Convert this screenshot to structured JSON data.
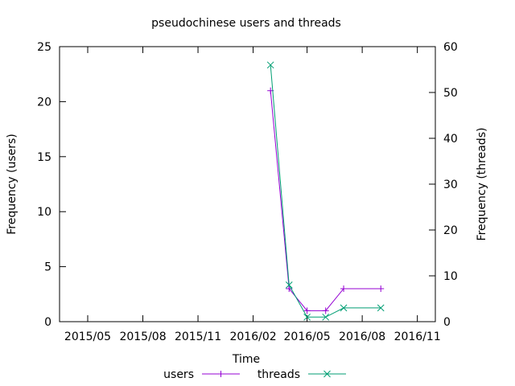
{
  "chart_data": {
    "type": "line",
    "title": "pseudochinese users and threads",
    "xlabel": "Time",
    "ylabel": "Frequency (users)",
    "y2label": "Frequency (threads)",
    "xlim": [
      "2015-03-15",
      "2016-12-01"
    ],
    "xticks": [
      {
        "date": "2015-05-01",
        "label": "2015/05"
      },
      {
        "date": "2015-08-01",
        "label": "2015/08"
      },
      {
        "date": "2015-11-01",
        "label": "2015/11"
      },
      {
        "date": "2016-02-01",
        "label": "2016/02"
      },
      {
        "date": "2016-05-01",
        "label": "2016/05"
      },
      {
        "date": "2016-08-01",
        "label": "2016/08"
      },
      {
        "date": "2016-11-01",
        "label": "2016/11"
      }
    ],
    "ylim": [
      0,
      25
    ],
    "yticks": [
      0,
      5,
      10,
      15,
      20,
      25
    ],
    "y2lim": [
      0,
      60
    ],
    "y2ticks": [
      0,
      10,
      20,
      30,
      40,
      50,
      60
    ],
    "grid": false,
    "legend": "bottom",
    "series": [
      {
        "name": "users",
        "axis": "left",
        "color": "#9400d3",
        "marker": "plus",
        "x": [
          "2016-03-01",
          "2016-04-01",
          "2016-05-01",
          "2016-06-01",
          "2016-07-01",
          "2016-09-01"
        ],
        "values": [
          21,
          3,
          1,
          1,
          3,
          3
        ]
      },
      {
        "name": "threads",
        "axis": "right",
        "color": "#009e73",
        "marker": "x",
        "x": [
          "2016-03-01",
          "2016-04-01",
          "2016-05-01",
          "2016-06-01",
          "2016-07-01",
          "2016-09-01"
        ],
        "values": [
          56,
          8,
          1,
          1,
          3,
          3
        ]
      }
    ]
  }
}
